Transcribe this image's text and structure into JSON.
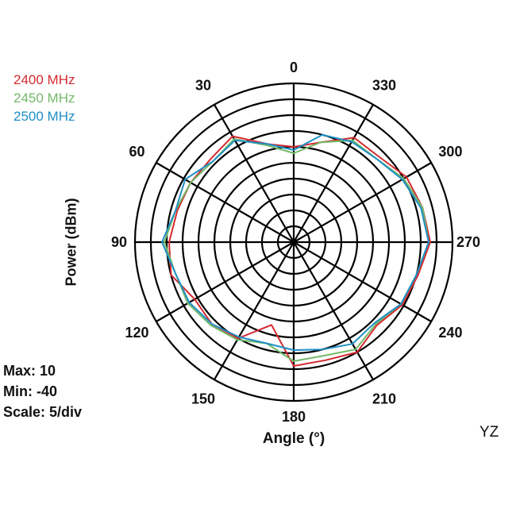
{
  "legend": [
    {
      "label": "2400 MHz",
      "color": "#d42a30"
    },
    {
      "label": "2450 MHz",
      "color": "#74b96a"
    },
    {
      "label": "2500 MHz",
      "color": "#1f8fc4"
    }
  ],
  "stats": {
    "max": "Max: 10",
    "min": "Min: -40",
    "scale": "Scale: 5/div"
  },
  "axis": {
    "ylabel": "Power  (dBm)",
    "xlabel": "Angle  (°)",
    "plane": "YZ"
  },
  "angle_labels": [
    "0",
    "30",
    "60",
    "90",
    "120",
    "150",
    "180",
    "210",
    "240",
    "270",
    "300",
    "330"
  ],
  "chart_data": {
    "type": "polar-line",
    "title": "",
    "plane": "YZ",
    "xlabel": "Angle (°)",
    "ylabel": "Power (dBm)",
    "r_range": [
      -40,
      10
    ],
    "scale_per_div": 5,
    "angular_ticks": [
      0,
      30,
      60,
      90,
      120,
      150,
      180,
      210,
      240,
      270,
      300,
      330
    ],
    "angle_direction": "counterclockwise from top",
    "grid": true,
    "legend_position": "top-left",
    "angles": [
      0,
      15,
      30,
      45,
      60,
      75,
      90,
      105,
      120,
      135,
      150,
      165,
      180,
      195,
      210,
      225,
      240,
      255,
      270,
      285,
      300,
      315,
      330,
      345
    ],
    "series": [
      {
        "name": "2400 MHz",
        "color": "#d42a30",
        "values": [
          -10,
          -8,
          -1.5,
          -3,
          -2.5,
          -2,
          -0.75,
          0,
          -4,
          -3.5,
          -5,
          -13,
          -1,
          -1.5,
          0,
          -3,
          -0.5,
          0.5,
          3,
          2,
          1,
          -2,
          -2,
          -7.5
        ]
      },
      {
        "name": "2450 MHz",
        "color": "#74b96a",
        "values": [
          -12,
          -8.5,
          -2.5,
          -4,
          -2.5,
          -1.5,
          0.75,
          -1.5,
          -1.5,
          -3,
          -4.5,
          -7,
          -2.5,
          -3,
          -1,
          -3.5,
          -1,
          0,
          2.5,
          2,
          0,
          -3,
          -3,
          -7.5
        ]
      },
      {
        "name": "2500 MHz",
        "color": "#1f8fc4",
        "values": [
          -11,
          -8,
          -3,
          -4,
          -0.5,
          -1.5,
          1.5,
          -1.5,
          -2,
          -3.5,
          -5.5,
          -7,
          -6,
          -5,
          -3,
          -4,
          -1,
          0,
          2.5,
          1.5,
          -0.5,
          -3,
          -3.5,
          -5
        ]
      }
    ]
  }
}
